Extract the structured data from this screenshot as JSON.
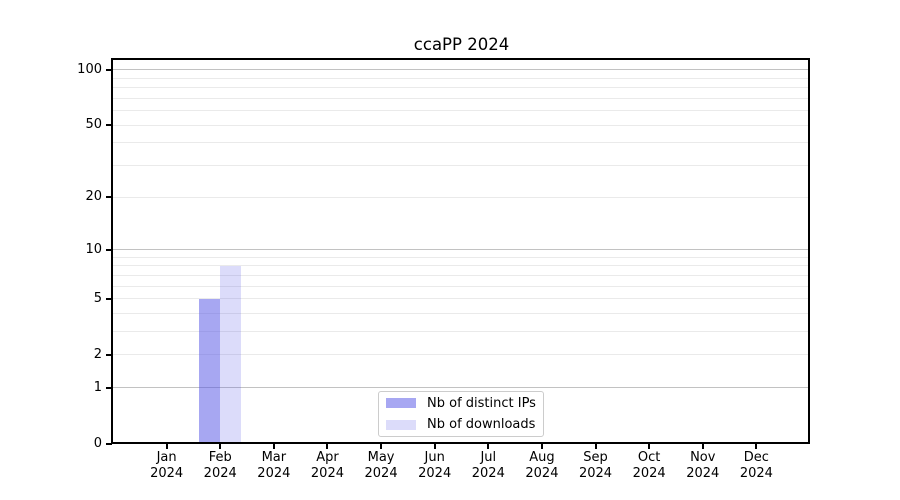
{
  "chart_data": {
    "type": "bar",
    "title": "ccaPP 2024",
    "months": [
      "Jan",
      "Feb",
      "Mar",
      "Apr",
      "May",
      "Jun",
      "Jul",
      "Aug",
      "Sep",
      "Oct",
      "Nov",
      "Dec"
    ],
    "year": "2024",
    "series": [
      {
        "name": "Nb of distinct IPs",
        "color": "rgba(80,80,230,0.50)",
        "color_hex_on_white": "#a9a9f2",
        "values": [
          0,
          5,
          0,
          0,
          0,
          0,
          0,
          0,
          0,
          0,
          0,
          0
        ]
      },
      {
        "name": "Nb of downloads",
        "color": "rgba(80,80,230,0.20)",
        "color_hex_on_white": "#dcdcfa",
        "values": [
          0,
          8,
          0,
          0,
          0,
          0,
          0,
          0,
          0,
          0,
          0,
          0
        ]
      }
    ],
    "yscale": "log1p",
    "ylim": [
      0,
      113
    ],
    "yticks": [
      0,
      1,
      2,
      5,
      10,
      20,
      50,
      100
    ],
    "grid_major": [
      1,
      10,
      100
    ],
    "grid_minor": [
      2,
      3,
      4,
      5,
      6,
      7,
      8,
      9,
      20,
      30,
      40,
      50,
      60,
      70,
      80,
      90
    ],
    "grid": "on",
    "legend_position": "lower center",
    "xlabel": "",
    "ylabel": ""
  },
  "style": {
    "background": "#ffffff",
    "spine_color": "#000000",
    "grid_major_color": "#c2c2c2",
    "grid_minor_color": "#eaeaea",
    "text_color": "#000000",
    "legend_border_color": "#cccccc"
  }
}
